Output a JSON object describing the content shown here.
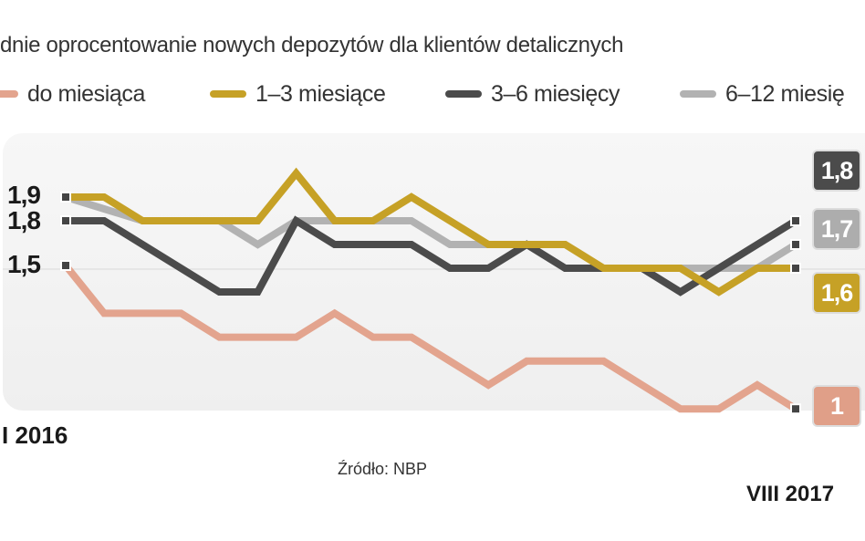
{
  "chart_data": {
    "type": "line",
    "title": "dnie oprocentowanie nowych depozytów dla klientów detalicznych",
    "x": [
      "I 2016",
      "II 2016",
      "III 2016",
      "IV 2016",
      "V 2016",
      "VI 2016",
      "VII 2016",
      "VIII 2016",
      "IX 2016",
      "X 2016",
      "XI 2016",
      "XII 2016",
      "I 2017",
      "II 2017",
      "III 2017",
      "IV 2017",
      "V 2017",
      "VI 2017",
      "VII 2017",
      "VIII 2017"
    ],
    "x_tick_labels": {
      "start": "I 2016",
      "end": "VIII 2017"
    },
    "y_tick_labels": [
      "1,9",
      "1,8",
      "1,5"
    ],
    "series": [
      {
        "name": "do miesiąca",
        "color": "#e3a48e",
        "values": [
          1.5,
          1.3,
          1.3,
          1.3,
          1.2,
          1.2,
          1.2,
          1.3,
          1.2,
          1.2,
          1.1,
          1.0,
          1.1,
          1.1,
          1.1,
          1.0,
          0.9,
          0.9,
          1.0,
          0.9
        ],
        "end_label": "1"
      },
      {
        "name": "1–3 miesiące",
        "color": "#c6a126",
        "values": [
          1.9,
          1.9,
          1.8,
          1.8,
          1.8,
          1.8,
          2.0,
          1.8,
          1.8,
          1.9,
          1.8,
          1.7,
          1.7,
          1.7,
          1.6,
          1.6,
          1.6,
          1.5,
          1.6,
          1.6
        ],
        "end_label": "1,6"
      },
      {
        "name": "3–6 miesięcy",
        "color": "#4b4b4b",
        "values": [
          1.8,
          1.8,
          1.7,
          1.6,
          1.5,
          1.5,
          1.8,
          1.7,
          1.7,
          1.7,
          1.6,
          1.6,
          1.7,
          1.6,
          1.6,
          1.6,
          1.5,
          1.6,
          1.7,
          1.8
        ],
        "end_label": "1,8"
      },
      {
        "name": "6–12 miesię",
        "color": "#b2b2b2",
        "values": [
          1.9,
          1.85,
          1.8,
          1.8,
          1.8,
          1.7,
          1.8,
          1.8,
          1.8,
          1.8,
          1.7,
          1.7,
          1.7,
          1.6,
          1.6,
          1.6,
          1.6,
          1.6,
          1.6,
          1.7
        ],
        "end_label": "1,7"
      }
    ],
    "grid": false,
    "legend_placement": "top"
  },
  "source": "Źródło: NBP"
}
